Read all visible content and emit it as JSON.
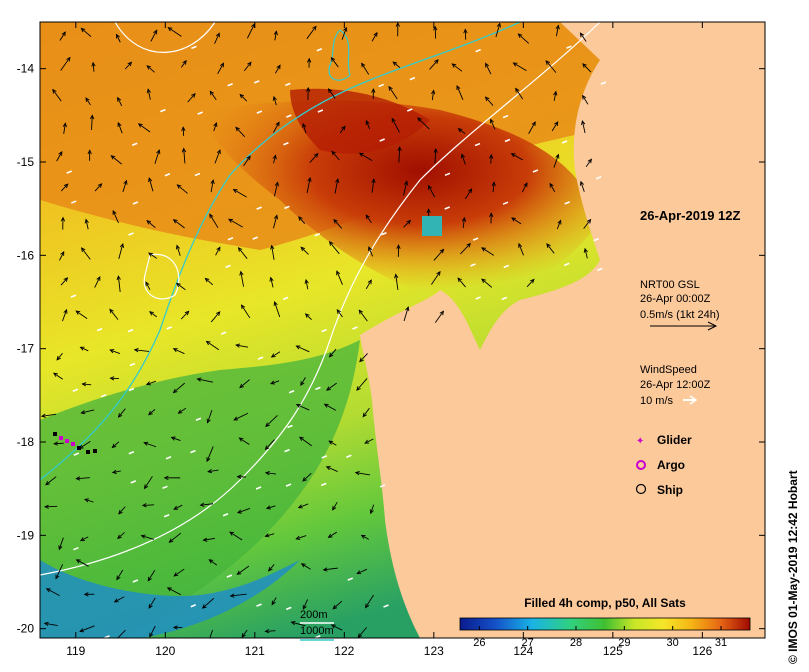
{
  "map": {
    "title": "26-Apr-2019 12Z",
    "credit": "© IMOS 01-May-2019 12:42 Hobart",
    "x_axis": {
      "min": 118.6,
      "max": 126.7,
      "ticks": [
        "119",
        "120",
        "121",
        "122",
        "123",
        "124",
        "125",
        "126"
      ],
      "tick_values": [
        119,
        120,
        121,
        122,
        123,
        124,
        125,
        126
      ]
    },
    "y_axis": {
      "min": -20.1,
      "max": -13.5,
      "ticks": [
        "-14",
        "-15",
        "-16",
        "-17",
        "-18",
        "-19",
        "-20"
      ],
      "tick_values": [
        -14,
        -15,
        -16,
        -17,
        -18,
        -19,
        -20
      ]
    }
  },
  "current_legend": {
    "line1": "NRT00 GSL",
    "line2": "26-Apr 00:00Z",
    "line3": "0.5m/s (1kt 24h)"
  },
  "wind_legend": {
    "line1": "WindSpeed",
    "line2": "26-Apr 12:00Z",
    "line3": "10 m/s"
  },
  "platforms": [
    {
      "label": "Glider",
      "color": "#cc00cc"
    },
    {
      "label": "Argo",
      "color": "#cc00cc"
    },
    {
      "label": "Ship",
      "color": "#000000"
    }
  ],
  "isobaths": [
    {
      "label": "200m",
      "color": "#ffffff"
    },
    {
      "label": "1000m",
      "color": "#33cccc"
    }
  ],
  "colorbar": {
    "title": "Filled 4h comp, p50, All Sats",
    "min": 25.6,
    "max": 31.6,
    "ticks": [
      "26",
      "27",
      "28",
      "29",
      "30",
      "31"
    ],
    "tick_values": [
      26,
      27,
      28,
      29,
      30,
      31
    ]
  },
  "colors": {
    "land": "#fcc99b",
    "iso200": "#ffffff",
    "iso1000": "#33cccc"
  }
}
